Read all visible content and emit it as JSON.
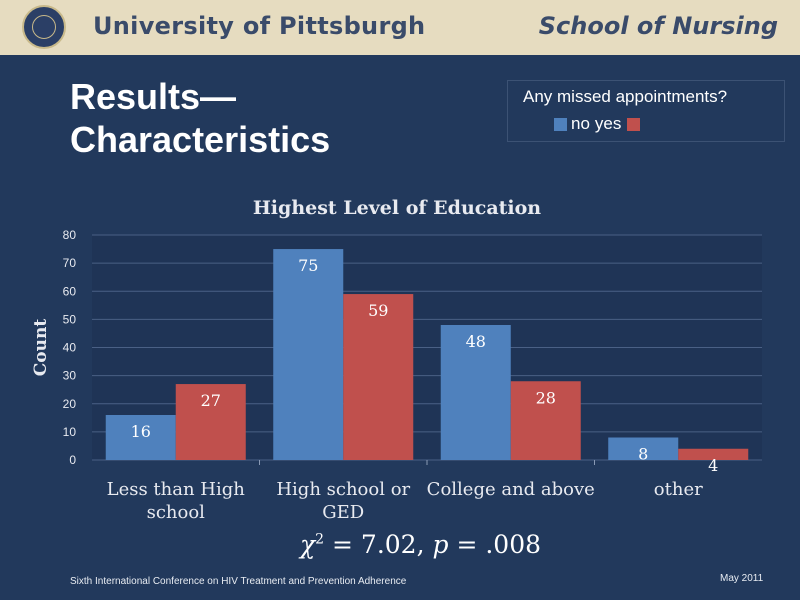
{
  "header": {
    "university": "University of Pittsburgh",
    "school": "School of Nursing",
    "seal_icon": "university-seal-icon"
  },
  "slide": {
    "title_line1": "Results—",
    "title_line2": "Characteristics"
  },
  "legend": {
    "title": "Any missed appointments?",
    "items": [
      {
        "label": "no",
        "color": "#4f81bd"
      },
      {
        "label": "yes",
        "color": "#c0504d"
      }
    ]
  },
  "chart_data": {
    "type": "bar",
    "title": "Highest Level of Education",
    "xlabel": "",
    "ylabel": "Count",
    "ylim": [
      0,
      80
    ],
    "yticks": [
      0,
      10,
      20,
      30,
      40,
      50,
      60,
      70,
      80
    ],
    "categories": [
      [
        "Less than High",
        "school"
      ],
      [
        "High school or",
        "GED"
      ],
      [
        "College and above"
      ],
      [
        "other"
      ]
    ],
    "series": [
      {
        "name": "no",
        "color": "#4f81bd",
        "values": [
          16,
          75,
          48,
          8
        ]
      },
      {
        "name": "yes",
        "color": "#c0504d",
        "values": [
          27,
          59,
          28,
          4
        ]
      }
    ],
    "grid": true,
    "legend_position": "top-right"
  },
  "statistic": {
    "chi": "χ",
    "sup": "2",
    "rest": " = 7.02, ",
    "p": "p",
    "value": " = .008"
  },
  "footer": {
    "conference": "Sixth International Conference on HIV Treatment and Prevention Adherence",
    "date": "May 2011"
  }
}
